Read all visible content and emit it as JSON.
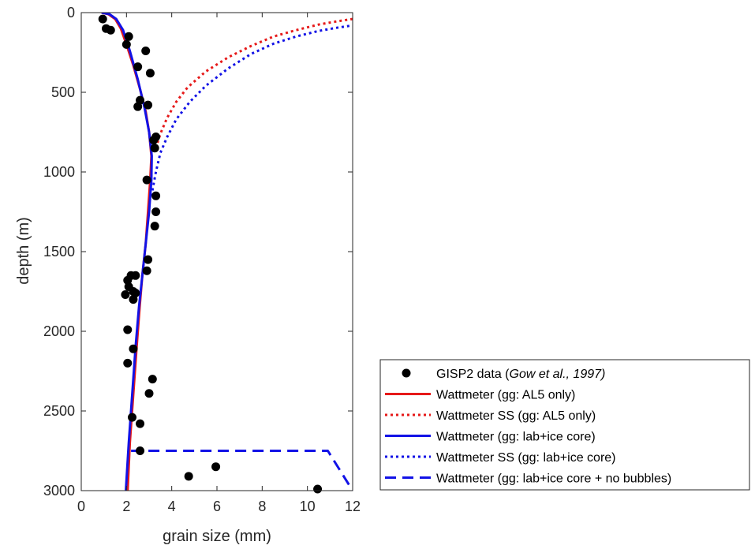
{
  "chart_data": {
    "type": "line",
    "title": "",
    "xlabel": "grain size (mm)",
    "ylabel": "depth (m)",
    "xlim": [
      0,
      12
    ],
    "ylim": [
      0,
      3000
    ],
    "y_reversed": true,
    "xticks": [
      0,
      2,
      4,
      6,
      8,
      10,
      12
    ],
    "yticks": [
      0,
      500,
      1000,
      1500,
      2000,
      2500,
      3000
    ],
    "grid": false,
    "legend_position": "lower-right, outside plot",
    "series": [
      {
        "name": "GISP2 data (Gow et al., 1997)",
        "legend_plain": "GISP2 data (",
        "legend_italic": "Gow et al., 1997)",
        "kind": "scatter",
        "color": "#000000",
        "points": [
          [
            0.95,
            40
          ],
          [
            1.1,
            100
          ],
          [
            1.3,
            110
          ],
          [
            2.1,
            150
          ],
          [
            2.0,
            200
          ],
          [
            2.85,
            240
          ],
          [
            2.5,
            340
          ],
          [
            3.05,
            380
          ],
          [
            2.6,
            550
          ],
          [
            2.5,
            590
          ],
          [
            2.95,
            580
          ],
          [
            3.2,
            800
          ],
          [
            3.3,
            780
          ],
          [
            3.25,
            850
          ],
          [
            2.9,
            1050
          ],
          [
            3.3,
            1150
          ],
          [
            3.3,
            1250
          ],
          [
            3.25,
            1340
          ],
          [
            2.95,
            1550
          ],
          [
            2.9,
            1620
          ],
          [
            2.4,
            1650
          ],
          [
            2.2,
            1650
          ],
          [
            2.05,
            1680
          ],
          [
            2.1,
            1720
          ],
          [
            2.3,
            1750
          ],
          [
            2.4,
            1760
          ],
          [
            1.95,
            1770
          ],
          [
            2.3,
            1800
          ],
          [
            2.05,
            1990
          ],
          [
            2.3,
            2110
          ],
          [
            2.05,
            2200
          ],
          [
            3.15,
            2300
          ],
          [
            3.0,
            2390
          ],
          [
            2.25,
            2540
          ],
          [
            2.6,
            2580
          ],
          [
            2.6,
            2750
          ],
          [
            4.75,
            2910
          ],
          [
            5.95,
            2850
          ],
          [
            10.45,
            2990
          ]
        ]
      },
      {
        "name": "Wattmeter (gg: AL5 only)",
        "kind": "line",
        "style": "solid",
        "color": "#e61919",
        "points": [
          [
            0.9,
            0
          ],
          [
            1.2,
            10
          ],
          [
            1.5,
            40
          ],
          [
            1.75,
            100
          ],
          [
            2.0,
            200
          ],
          [
            2.3,
            330
          ],
          [
            2.6,
            480
          ],
          [
            2.85,
            620
          ],
          [
            3.0,
            750
          ],
          [
            3.1,
            900
          ],
          [
            3.05,
            1050
          ],
          [
            2.95,
            1250
          ],
          [
            2.85,
            1450
          ],
          [
            2.7,
            1650
          ],
          [
            2.58,
            1850
          ],
          [
            2.45,
            2100
          ],
          [
            2.3,
            2400
          ],
          [
            2.15,
            2700
          ],
          [
            2.05,
            3000
          ]
        ]
      },
      {
        "name": "Wattmeter SS (gg: AL5 only)",
        "kind": "line",
        "style": "dotted",
        "color": "#e61919",
        "points": [
          [
            3.3,
            850
          ],
          [
            3.5,
            760
          ],
          [
            3.8,
            660
          ],
          [
            4.2,
            560
          ],
          [
            4.7,
            470
          ],
          [
            5.5,
            370
          ],
          [
            6.5,
            280
          ],
          [
            7.5,
            210
          ],
          [
            8.5,
            150
          ],
          [
            9.5,
            110
          ],
          [
            10.5,
            75
          ],
          [
            11.3,
            55
          ],
          [
            12.0,
            40
          ]
        ]
      },
      {
        "name": "Wattmeter (gg: lab+ice core)",
        "kind": "line",
        "style": "solid",
        "color": "#1212e6",
        "points": [
          [
            0.9,
            0
          ],
          [
            1.25,
            10
          ],
          [
            1.55,
            40
          ],
          [
            1.85,
            110
          ],
          [
            2.15,
            240
          ],
          [
            2.5,
            420
          ],
          [
            2.8,
            600
          ],
          [
            3.0,
            750
          ],
          [
            3.12,
            900
          ],
          [
            3.1,
            1050
          ],
          [
            3.0,
            1250
          ],
          [
            2.85,
            1450
          ],
          [
            2.7,
            1650
          ],
          [
            2.55,
            1850
          ],
          [
            2.4,
            2100
          ],
          [
            2.25,
            2400
          ],
          [
            2.1,
            2700
          ],
          [
            1.97,
            3000
          ]
        ]
      },
      {
        "name": "Wattmeter SS (gg: lab+ice core)",
        "kind": "line",
        "style": "dotted",
        "color": "#1212e6",
        "points": [
          [
            3.1,
            1150
          ],
          [
            3.3,
            1000
          ],
          [
            3.5,
            880
          ],
          [
            3.8,
            780
          ],
          [
            4.2,
            670
          ],
          [
            4.8,
            560
          ],
          [
            5.5,
            460
          ],
          [
            6.5,
            350
          ],
          [
            7.5,
            260
          ],
          [
            8.5,
            195
          ],
          [
            9.5,
            150
          ],
          [
            10.5,
            115
          ],
          [
            11.3,
            95
          ],
          [
            12.0,
            80
          ]
        ]
      },
      {
        "name": "Wattmeter (gg: lab+ice core + no bubbles)",
        "kind": "line",
        "style": "dashed",
        "color": "#1212e6",
        "points": [
          [
            2.2,
            2750
          ],
          [
            10.9,
            2750
          ],
          [
            12.0,
            3000
          ]
        ]
      }
    ]
  }
}
